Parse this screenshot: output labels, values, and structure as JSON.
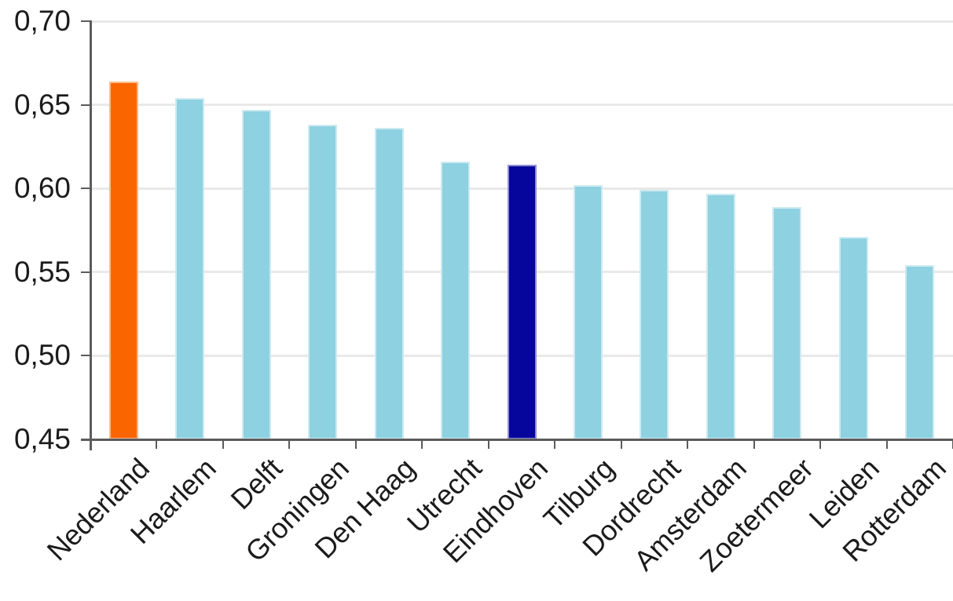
{
  "chart_data": {
    "type": "bar",
    "title": "",
    "xlabel": "",
    "ylabel": "",
    "categories": [
      "Nederland",
      "Haarlem",
      "Delft",
      "Groningen",
      "Den Haag",
      "Utrecht",
      "Eindhoven",
      "Tilburg",
      "Dordrecht",
      "Amsterdam",
      "Zoetermeer",
      "Leiden",
      "Rotterdam"
    ],
    "values": [
      0.664,
      0.654,
      0.647,
      0.638,
      0.636,
      0.616,
      0.614,
      0.602,
      0.599,
      0.597,
      0.589,
      0.571,
      0.554
    ],
    "ylim": [
      0.45,
      0.7
    ],
    "ytick_step": 0.05,
    "ytick_labels": [
      "0,45",
      "0,50",
      "0,55",
      "0,60",
      "0,65",
      "0,70"
    ],
    "decimal_separator": ",",
    "grid": true,
    "legend": "none",
    "colors": {
      "default": "#8ED1E1",
      "overrides": {
        "Nederland": "#FB6500",
        "Eindhoven": "#06069C"
      }
    },
    "axis_color": "#5b5b5b",
    "gridline_color": "#e9e9e9",
    "label_color": "#1b1b1b",
    "x_label_rotation_deg": -45
  }
}
